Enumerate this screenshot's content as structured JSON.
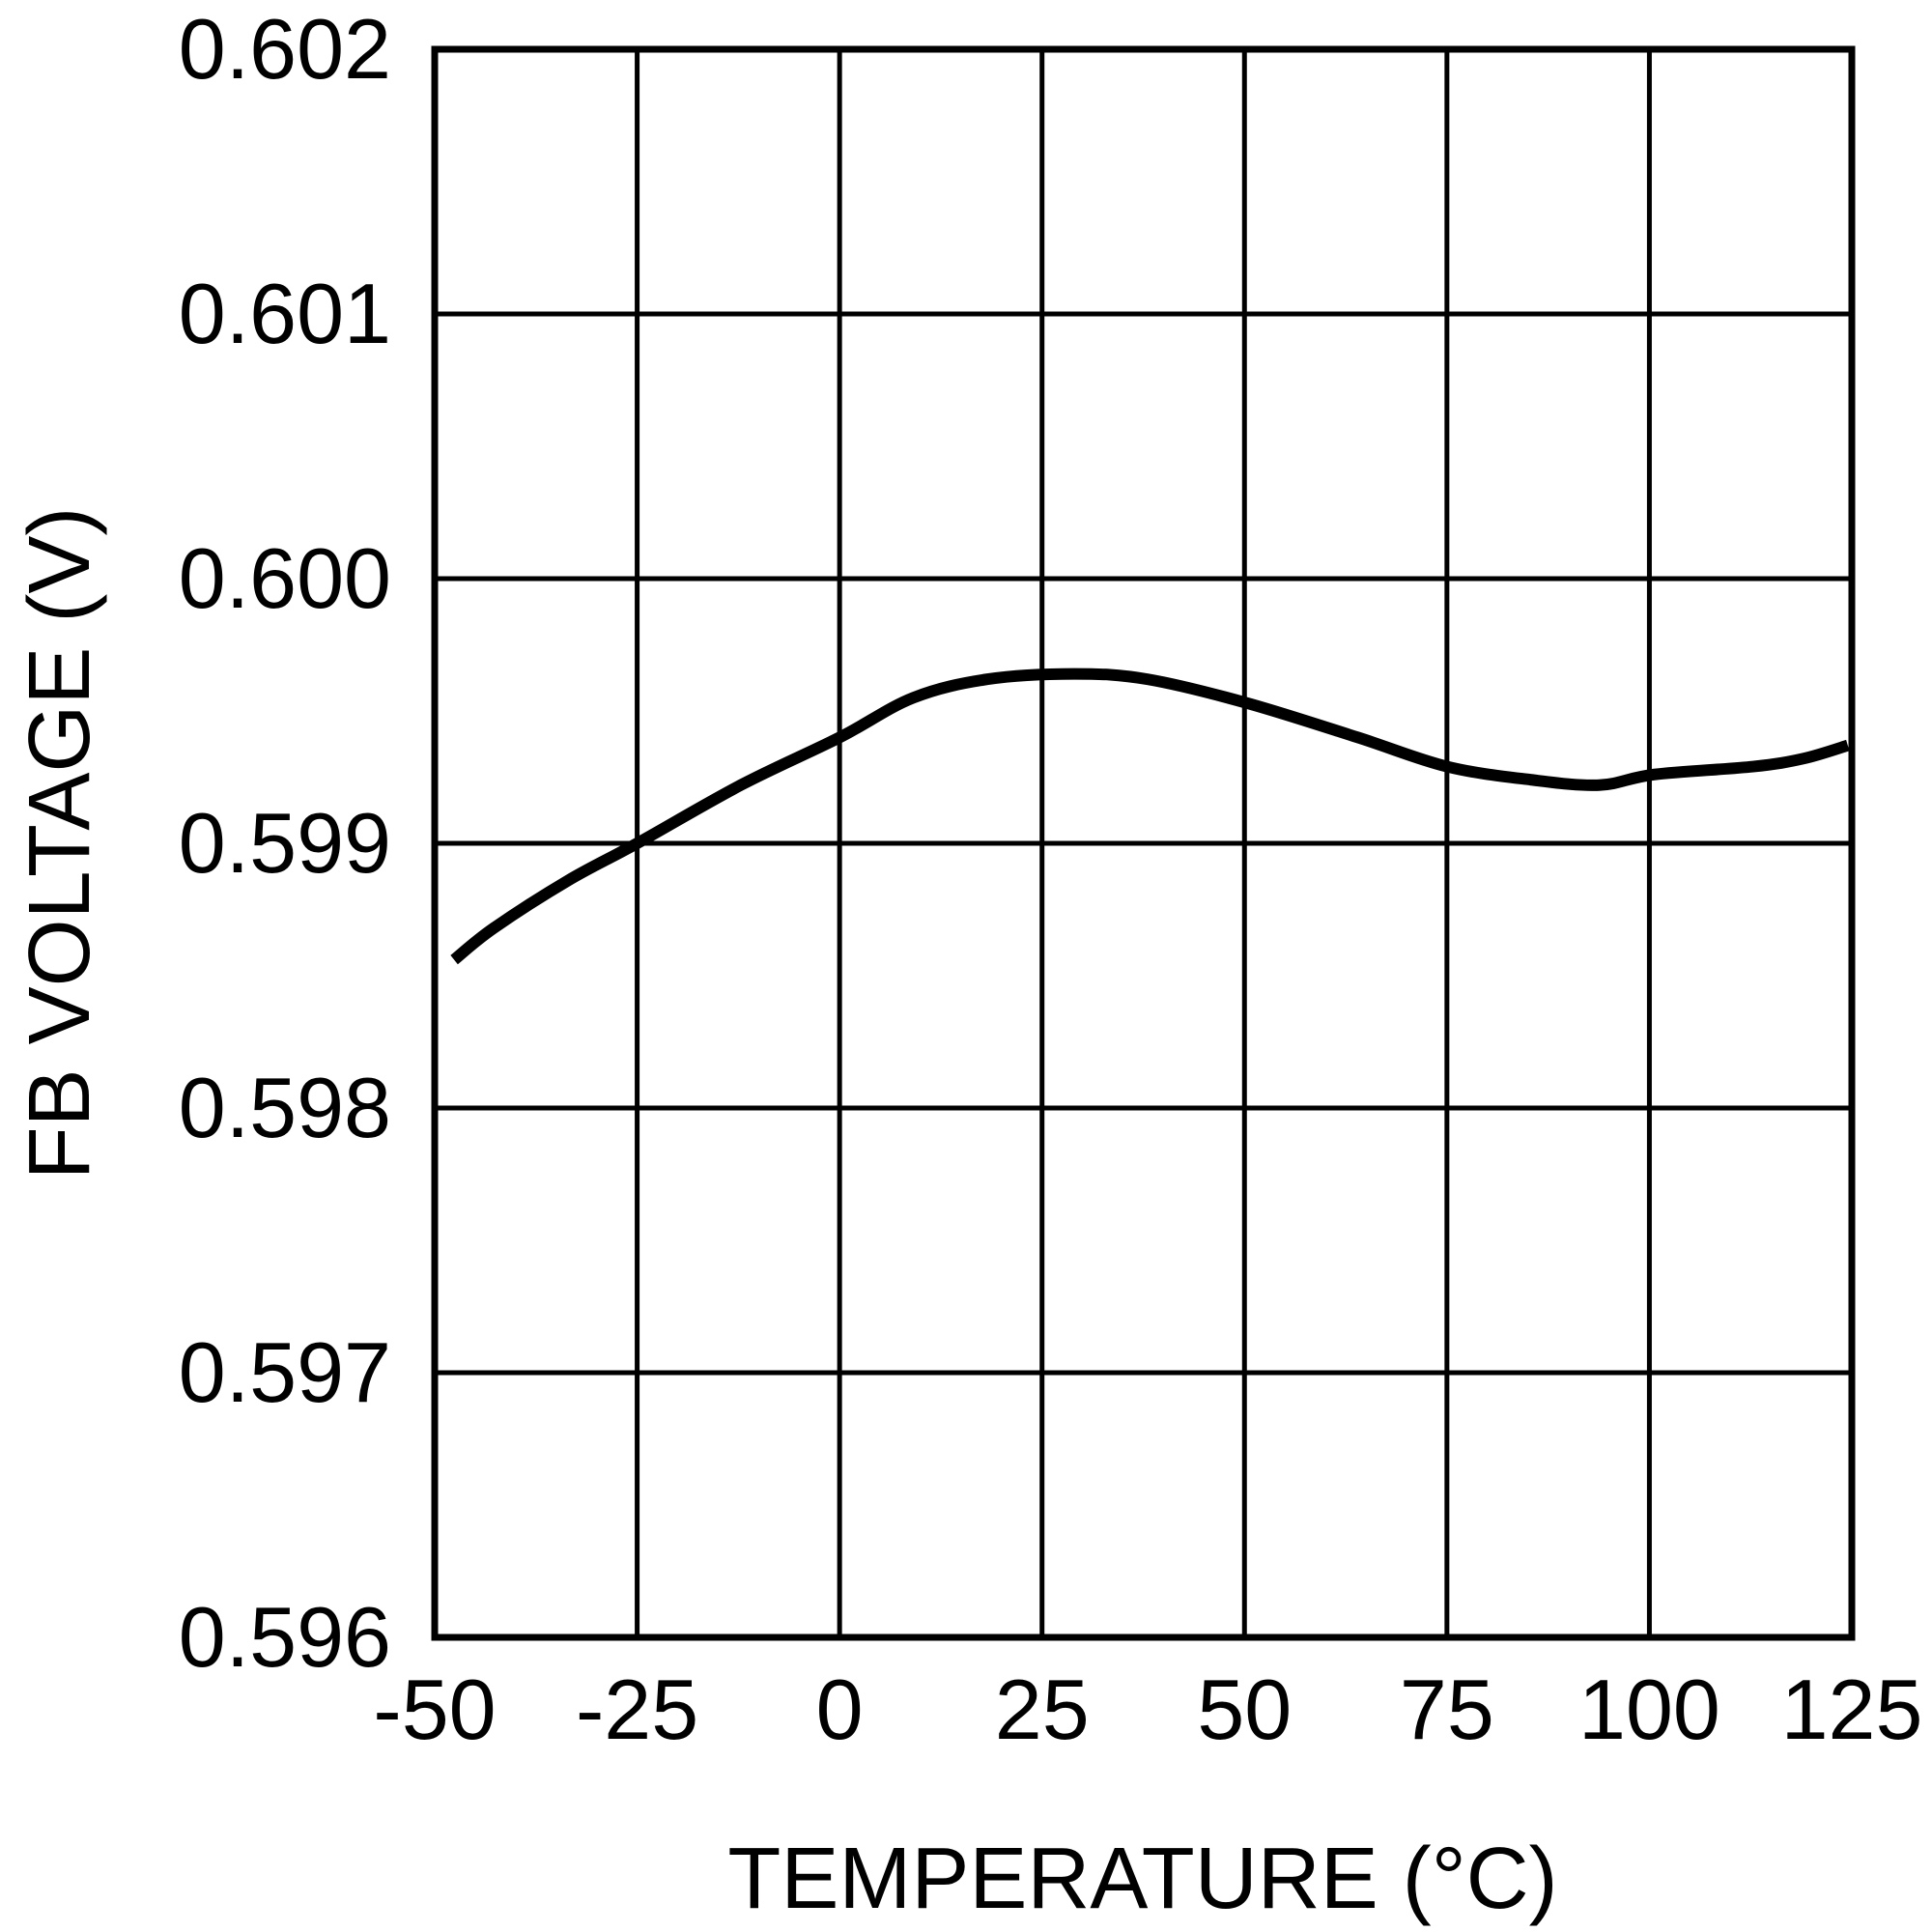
{
  "chart_data": {
    "type": "line",
    "title": "",
    "xlabel": "TEMPERATURE (°C)",
    "ylabel": "FB VOLTAGE (V)",
    "xlim": [
      -50,
      125
    ],
    "ylim": [
      0.596,
      0.602
    ],
    "x_ticks": [
      "-50",
      "-25",
      "0",
      "25",
      "50",
      "75",
      "100",
      "125"
    ],
    "y_ticks": [
      "0.596",
      "0.597",
      "0.598",
      "0.599",
      "0.600",
      "0.601",
      "0.602"
    ],
    "grid": true,
    "line_color": "#000000",
    "series": [
      {
        "x": [
          -47.6,
          -42.7,
          -33.5,
          -25,
          -12.2,
          0,
          9.1,
          18.3,
          29,
          38,
          50.3,
          64,
          75,
          85.4,
          93.8,
          100.6,
          112.8,
          119,
          124.5
        ],
        "y": [
          0.59856,
          0.59868,
          0.59886,
          0.599,
          0.59922,
          0.5994,
          0.59955,
          0.59962,
          0.59964,
          0.59962,
          0.59953,
          0.5994,
          0.59929,
          0.59924,
          0.59922,
          0.59926,
          0.59929,
          0.59932,
          0.59937
        ]
      }
    ]
  }
}
